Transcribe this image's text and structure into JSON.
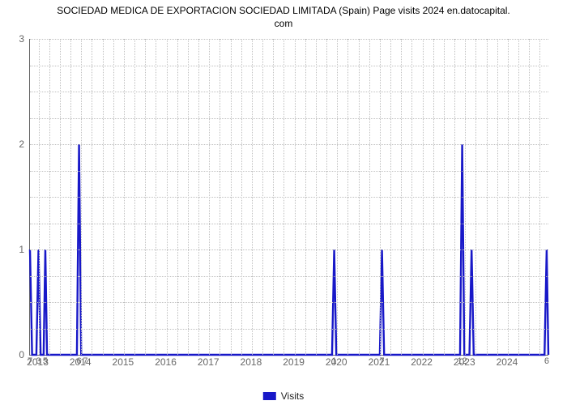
{
  "title_line1": "SOCIEDAD MEDICA DE EXPORTACION SOCIEDAD LIMITADA (Spain) Page visits 2024 en.datocapital.",
  "title_line2": "com",
  "chart": {
    "type": "line",
    "line_color": "#1818c8",
    "line_width": 2.4,
    "fill_opacity": 0,
    "background_color": "#ffffff",
    "grid_color": "#bfbfbf",
    "grid_style": "dotted",
    "axis_color": "#666666",
    "title_fontsize": 12,
    "tick_fontsize": 12,
    "tick_color": "#676767",
    "xlabel": "",
    "ylabel": "",
    "ylim": [
      0,
      3
    ],
    "ytick_step": 1,
    "yticks": [
      0,
      1,
      2,
      3
    ],
    "x_year_ticks": [
      2013,
      2014,
      2015,
      2016,
      2017,
      2018,
      2019,
      2020,
      2021,
      2022,
      2023,
      2024
    ],
    "x_range_years": [
      2012.8,
      2024.95
    ],
    "points": [
      {
        "x": 2012.8,
        "y": 1.0
      },
      {
        "x": 2012.85,
        "y": 0.0
      },
      {
        "x": 2012.95,
        "y": 0.0
      },
      {
        "x": 2013.0,
        "y": 1.0
      },
      {
        "x": 2013.05,
        "y": 0.0
      },
      {
        "x": 2013.12,
        "y": 0.0
      },
      {
        "x": 2013.16,
        "y": 1.0
      },
      {
        "x": 2013.2,
        "y": 0.0
      },
      {
        "x": 2013.9,
        "y": 0.0
      },
      {
        "x": 2013.95,
        "y": 2.0
      },
      {
        "x": 2014.0,
        "y": 0.0
      },
      {
        "x": 2019.88,
        "y": 0.0
      },
      {
        "x": 2019.93,
        "y": 1.0
      },
      {
        "x": 2019.98,
        "y": 0.0
      },
      {
        "x": 2021.0,
        "y": 0.0
      },
      {
        "x": 2021.05,
        "y": 1.0
      },
      {
        "x": 2021.1,
        "y": 0.0
      },
      {
        "x": 2022.88,
        "y": 0.0
      },
      {
        "x": 2022.93,
        "y": 2.0
      },
      {
        "x": 2022.98,
        "y": 0.0
      },
      {
        "x": 2023.1,
        "y": 0.0
      },
      {
        "x": 2023.15,
        "y": 1.0
      },
      {
        "x": 2023.2,
        "y": 0.0
      },
      {
        "x": 2024.86,
        "y": 0.0
      },
      {
        "x": 2024.91,
        "y": 1.0
      },
      {
        "x": 2024.95,
        "y": 0.0
      }
    ],
    "value_labels": [
      {
        "x": 2012.8,
        "text": "7"
      },
      {
        "x": 2013.0,
        "text": "3"
      },
      {
        "x": 2013.16,
        "text": "5"
      },
      {
        "x": 2013.95,
        "text": "6"
      },
      {
        "x": 2014.1,
        "text": "7"
      },
      {
        "x": 2019.93,
        "text": "1"
      },
      {
        "x": 2021.05,
        "text": "7"
      },
      {
        "x": 2022.93,
        "text": "12"
      },
      {
        "x": 2024.91,
        "text": "6"
      }
    ],
    "value_label_fontsize": 11
  },
  "legend": {
    "label": "Visits",
    "color": "#1818c8"
  }
}
